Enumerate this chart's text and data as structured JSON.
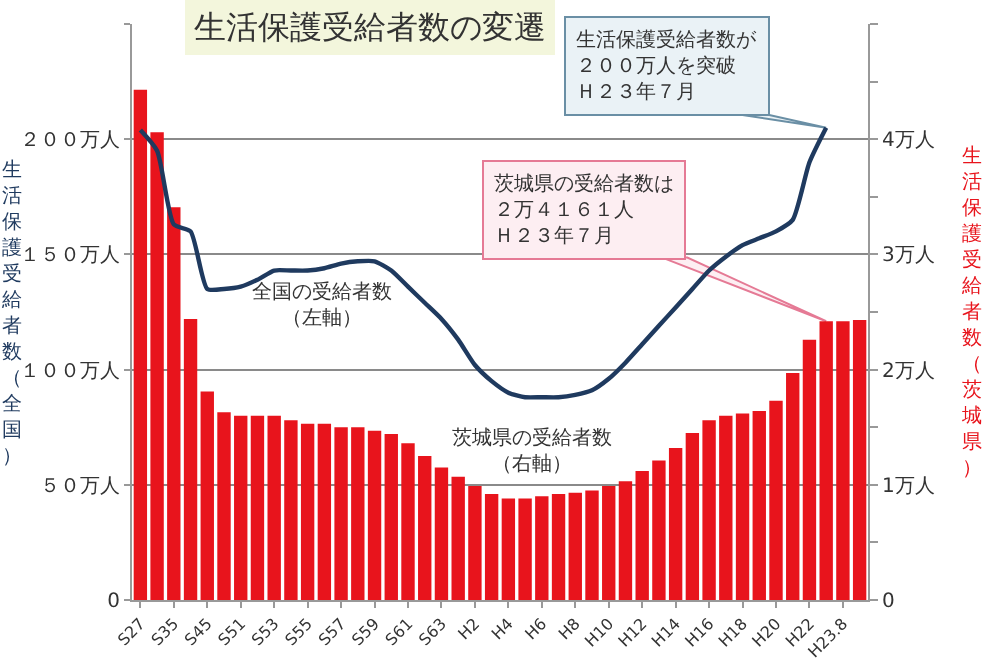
{
  "chart_data": {
    "type": "bar",
    "title": "生活保護受給者数の変遷",
    "categories": [
      "S27",
      null,
      "S35",
      null,
      "S45",
      null,
      "S51",
      null,
      "S53",
      null,
      "S55",
      null,
      "S57",
      null,
      "S59",
      null,
      "S61",
      null,
      "S63",
      null,
      "H2",
      null,
      "H4",
      null,
      "H6",
      null,
      "H8",
      null,
      "H10",
      null,
      "H12",
      null,
      "H14",
      null,
      "H16",
      null,
      "H18",
      null,
      "H20",
      null,
      "H22",
      null,
      "H23.8",
      null
    ],
    "series": [
      {
        "axis": "y2",
        "color": "#e8141c",
        "values": [
          4.43,
          4.06,
          3.41,
          2.44,
          1.81,
          1.63,
          1.6,
          1.6,
          1.6,
          1.56,
          1.53,
          1.53,
          1.5,
          1.5,
          1.47,
          1.44,
          1.36,
          1.25,
          1.15,
          1.07,
          0.99,
          0.92,
          0.88,
          0.88,
          0.9,
          0.92,
          0.93,
          0.95,
          0.99,
          1.03,
          1.12,
          1.21,
          1.32,
          1.45,
          1.56,
          1.6,
          1.62,
          1.64,
          1.73,
          1.97,
          2.26,
          2.42,
          2.42,
          2.43
        ]
      },
      {
        "type": "line",
        "axis": "y",
        "color": "#1f3a5f",
        "values": [
          204,
          195,
          163,
          160,
          135,
          135,
          136,
          139,
          143,
          143,
          143,
          144,
          146,
          147,
          147,
          143,
          136,
          129,
          122,
          113,
          102,
          95,
          90,
          88,
          88,
          88,
          89,
          91,
          96,
          103,
          111,
          119,
          127,
          135,
          143,
          149,
          154,
          157,
          160,
          165,
          190,
          205,
          null,
          null
        ]
      }
    ],
    "ylabel": "生活保護受給者数（全国）",
    "y2label": "生活保護受給者数（茨城県）",
    "ylim": [
      0,
      250
    ],
    "yticks": [
      0,
      {
        "value": 50,
        "label": "５０万人"
      },
      {
        "value": 100,
        "label": "１００万人"
      },
      {
        "value": 150,
        "label": "１５０万人"
      },
      {
        "value": 200,
        "label": "２００万人"
      },
      {
        "value": 250,
        "label": null
      }
    ],
    "y2lim": [
      0,
      5
    ],
    "y2ticks": [
      0,
      {
        "value": 0.5,
        "label": null
      },
      {
        "value": 1,
        "label": "1万人"
      },
      {
        "value": 1.5,
        "label": null
      },
      {
        "value": 2,
        "label": "2万人"
      },
      {
        "value": 2.5,
        "label": null
      },
      {
        "value": 3,
        "label": "3万人"
      },
      {
        "value": 3.5,
        "label": null
      },
      {
        "value": 4,
        "label": "4万人"
      },
      {
        "value": 4.5,
        "label": null
      },
      {
        "value": 5,
        "label": null
      }
    ],
    "grid": "y",
    "legend": false,
    "marker": "none",
    "line_style": "solid",
    "annotations": [
      "全国の受給者数（左軸）",
      "茨城県の受給者数（右軸）",
      "生活保護受給者数が２００万人を突破Ｈ２３年７月",
      "茨城県の受給者数は２万４１６１人Ｈ２３年７月"
    ]
  }
}
